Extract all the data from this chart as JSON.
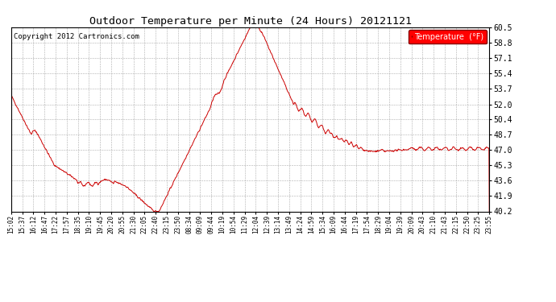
{
  "title": "Outdoor Temperature per Minute (24 Hours) 20121121",
  "copyright": "Copyright 2012 Cartronics.com",
  "legend_label": "Temperature  (°F)",
  "line_color": "#cc0000",
  "background_color": "#ffffff",
  "plot_bg_color": "#ffffff",
  "ylim": [
    40.2,
    60.5
  ],
  "yticks": [
    40.2,
    41.9,
    43.6,
    45.3,
    47.0,
    48.7,
    50.4,
    52.0,
    53.7,
    55.4,
    57.1,
    58.8,
    60.5
  ],
  "x_tick_labels": [
    "15:02",
    "15:37",
    "16:12",
    "16:47",
    "17:22",
    "17:57",
    "18:35",
    "19:10",
    "19:45",
    "20:20",
    "20:55",
    "21:30",
    "22:05",
    "22:40",
    "23:15",
    "23:50",
    "08:34",
    "09:09",
    "09:44",
    "10:19",
    "10:54",
    "11:29",
    "12:04",
    "12:39",
    "13:14",
    "13:49",
    "14:24",
    "14:59",
    "15:34",
    "16:09",
    "16:44",
    "17:19",
    "17:54",
    "18:29",
    "19:04",
    "19:39",
    "20:09",
    "20:43",
    "21:10",
    "21:43",
    "22:15",
    "22:50",
    "23:25",
    "23:55"
  ]
}
